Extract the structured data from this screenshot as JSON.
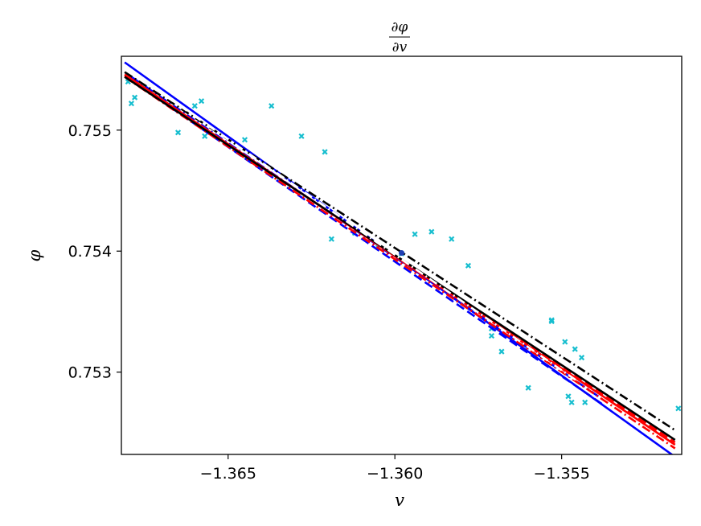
{
  "chart_data": {
    "type": "scatter",
    "title": {
      "numerator": "∂φ",
      "denominator": "∂v"
    },
    "xlabel": "v",
    "ylabel": "φ",
    "xlim": [
      -1.3682,
      -1.3514
    ],
    "ylim": [
      0.75232,
      0.75561
    ],
    "x_ticks": [
      {
        "value": -1.365,
        "label": "−1.365"
      },
      {
        "value": -1.36,
        "label": "−1.360"
      },
      {
        "value": -1.355,
        "label": "−1.355"
      }
    ],
    "y_ticks": [
      {
        "value": 0.753,
        "label": "0.753"
      },
      {
        "value": 0.754,
        "label": "0.754"
      },
      {
        "value": 0.755,
        "label": "0.755"
      }
    ],
    "grid": false,
    "legend": "none",
    "scatter_points": {
      "color": "#17becf",
      "marker": "x",
      "points": [
        [
          -1.368,
          0.7554
        ],
        [
          -1.3679,
          0.75522
        ],
        [
          -1.3678,
          0.75527
        ],
        [
          -1.3675,
          0.75535
        ],
        [
          -1.3665,
          0.75498
        ],
        [
          -1.366,
          0.7552
        ],
        [
          -1.3658,
          0.75524
        ],
        [
          -1.3657,
          0.75495
        ],
        [
          -1.3645,
          0.75492
        ],
        [
          -1.3637,
          0.7552
        ],
        [
          -1.3628,
          0.75495
        ],
        [
          -1.3621,
          0.75482
        ],
        [
          -1.3619,
          0.7541
        ],
        [
          -1.3612,
          0.75415
        ],
        [
          -1.3605,
          0.75403
        ],
        [
          -1.3598,
          0.75398
        ],
        [
          -1.3594,
          0.75414
        ],
        [
          -1.3589,
          0.75416
        ],
        [
          -1.3583,
          0.7541
        ],
        [
          -1.3578,
          0.75388
        ],
        [
          -1.3571,
          0.7533
        ],
        [
          -1.3571,
          0.75336
        ],
        [
          -1.3568,
          0.75317
        ],
        [
          -1.356,
          0.75287
        ],
        [
          -1.3553,
          0.75342
        ],
        [
          -1.3553,
          0.75343
        ],
        [
          -1.3549,
          0.75325
        ],
        [
          -1.3548,
          0.7528
        ],
        [
          -1.3547,
          0.75275
        ],
        [
          -1.3546,
          0.75319
        ],
        [
          -1.3544,
          0.75312
        ],
        [
          -1.3543,
          0.75275
        ],
        [
          -1.3515,
          0.7527
        ]
      ]
    },
    "center_point": {
      "x": -1.3598,
      "y": 0.753985,
      "color": "#1f3fb4"
    },
    "series": [
      {
        "color": "#0000ff",
        "style": "solid",
        "x": [
          -1.3681,
          -1.3516
        ],
        "y": [
          0.75556,
          0.7523
        ]
      },
      {
        "color": "#0000ff",
        "style": "dashed",
        "x": [
          -1.368,
          -1.3537
        ],
        "y": [
          0.75543,
          0.75272
        ]
      },
      {
        "color": "#0000ff",
        "style": "dashdot",
        "x": [
          -1.3679,
          -1.3539
        ],
        "y": [
          0.75544,
          0.7528
        ]
      },
      {
        "color": "#ff0000",
        "style": "solid",
        "x": [
          -1.3681,
          -1.3516
        ],
        "y": [
          0.75546,
          0.7524
        ]
      },
      {
        "color": "#ff0000",
        "style": "dashed",
        "x": [
          -1.3681,
          -1.3516
        ],
        "y": [
          0.75545,
          0.75242
        ]
      },
      {
        "color": "#ff0000",
        "style": "dashdot",
        "x": [
          -1.3681,
          -1.3516
        ],
        "y": [
          0.75544,
          0.75237
        ]
      },
      {
        "color": "#000000",
        "style": "solid",
        "x": [
          -1.3681,
          -1.3516
        ],
        "y": [
          0.75544,
          0.75244
        ]
      },
      {
        "color": "#000000",
        "style": "dashdot",
        "x": [
          -1.3681,
          -1.3516
        ],
        "y": [
          0.75548,
          0.75252
        ]
      },
      {
        "color": "#ffffff",
        "style": "dashdot",
        "x": [
          -1.3677,
          -1.3545
        ],
        "y": [
          0.75544,
          0.75292
        ]
      }
    ]
  }
}
